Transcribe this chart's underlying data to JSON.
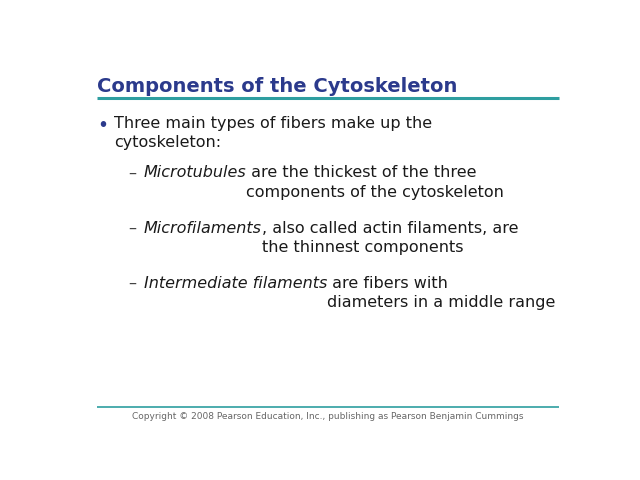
{
  "title": "Components of the Cytoskeleton",
  "title_color": "#2B3A8C",
  "title_fontsize": 14,
  "background_color": "#FFFFFF",
  "teal_line_color": "#2E9EA0",
  "bullet_color": "#2B3A8C",
  "text_color": "#1a1a1a",
  "dash_color": "#444444",
  "body_fontsize": 11.5,
  "footer_text": "Copyright © 2008 Pearson Education, Inc., publishing as Pearson Benjamin Cummings",
  "footer_fontsize": 6.5,
  "footer_color": "#666666",
  "sub_items": [
    {
      "italic_part": "Microtubules",
      "normal_part": " are the thickest of the three\ncomponents of the cytoskeleton"
    },
    {
      "italic_part": "Microfilaments",
      "normal_part": ", also called actin filaments, are\nthe thinnest components"
    },
    {
      "italic_part": "Intermediate filaments",
      "normal_part": " are fibers with\ndiameters in a middle range"
    }
  ]
}
